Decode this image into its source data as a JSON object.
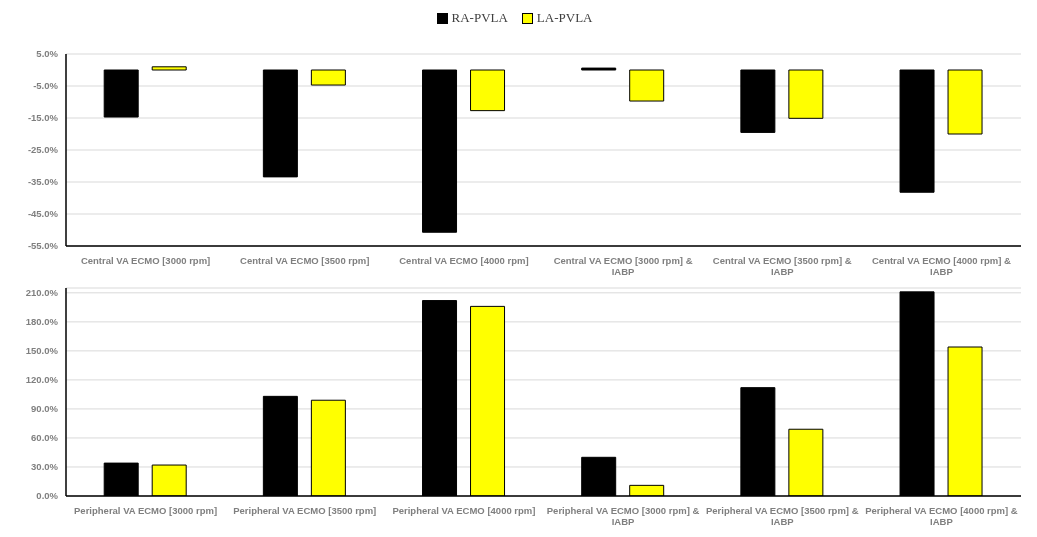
{
  "chart_data": [
    {
      "type": "bar",
      "categories": [
        "Central VA ECMO [3000 rpm]",
        "Central VA ECMO [3500 rpm]",
        "Central VA ECMO [4000 rpm]",
        "Central VA ECMO [3000 rpm] & IABP",
        "Central VA ECMO [3500 rpm] & IABP",
        "Central VA ECMO [4000 rpm] & IABP"
      ],
      "series": [
        {
          "name": "RA-PVLA",
          "color": "#000000",
          "values": [
            -14.7,
            -33.4,
            -50.7,
            0.6,
            -19.5,
            -38.2
          ]
        },
        {
          "name": "LA-PVLA",
          "color": "#ffff00",
          "values": [
            1.0,
            -4.7,
            -12.7,
            -9.7,
            -15.1,
            -20.0
          ]
        }
      ],
      "ylim": [
        -55,
        5
      ],
      "yticks": [
        {
          "value": 5,
          "label": "5.0%"
        },
        {
          "value": -5,
          "label": "-5.0%"
        },
        {
          "value": -15,
          "label": "-15.0%"
        },
        {
          "value": -25,
          "label": "-25.0%"
        },
        {
          "value": -35,
          "label": "-35.0%"
        },
        {
          "value": -45,
          "label": "-45.0%"
        },
        {
          "value": -55,
          "label": "-55.0%"
        }
      ],
      "grid": "y",
      "legend": "top"
    },
    {
      "type": "bar",
      "categories": [
        "Peripheral VA ECMO [3000 rpm]",
        "Peripheral VA ECMO [3500 rpm]",
        "Peripheral VA ECMO [4000 rpm]",
        "Peripheral VA ECMO [3000 rpm] & IABP",
        "Peripheral VA ECMO [3500 rpm] & IABP",
        "Peripheral VA ECMO [4000 rpm] & IABP"
      ],
      "series": [
        {
          "color": "#000000",
          "values": [
            34,
            103,
            202,
            40,
            112,
            211
          ]
        },
        {
          "color": "#ffff00",
          "values": [
            32,
            99,
            196,
            11,
            69,
            154
          ]
        }
      ],
      "ylim": [
        0,
        215
      ],
      "yticks": [
        {
          "value": 0,
          "label": "0.0%"
        },
        {
          "value": 30,
          "label": "30.0%"
        },
        {
          "value": 60,
          "label": "60.0%"
        },
        {
          "value": 90,
          "label": "90.0%"
        },
        {
          "value": 120,
          "label": "120.0%"
        },
        {
          "value": 150,
          "label": "150.0%"
        },
        {
          "value": 180,
          "label": "180.0%"
        },
        {
          "value": 210,
          "label": "210.0%"
        }
      ],
      "grid": "y",
      "legend": false
    }
  ]
}
